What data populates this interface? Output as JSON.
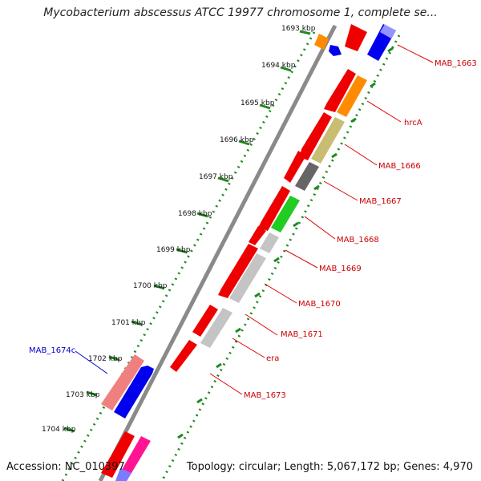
{
  "header": {
    "title": "Mycobacterium abscessus ATCC 19977 chromosome 1, complete se..."
  },
  "footer": {
    "accession": "Accession: NC_010397",
    "summary": "Topology: circular; Length: 5,067,172 bp; Genes: 4,970"
  },
  "ticks": [
    {
      "label": "1693 kbp",
      "kbp": 1693
    },
    {
      "label": "1694 kbp",
      "kbp": 1694
    },
    {
      "label": "1695 kbp",
      "kbp": 1695
    },
    {
      "label": "1696 kbp",
      "kbp": 1696
    },
    {
      "label": "1697 kbp",
      "kbp": 1697
    },
    {
      "label": "1698 kbp",
      "kbp": 1698
    },
    {
      "label": "1699 kbp",
      "kbp": 1699
    },
    {
      "label": "1700 kbp",
      "kbp": 1700
    },
    {
      "label": "1701 kbp",
      "kbp": 1701
    },
    {
      "label": "1702 kbp",
      "kbp": 1702
    },
    {
      "label": "1703 kbp",
      "kbp": 1703
    },
    {
      "label": "1704 kbp",
      "kbp": 1704
    }
  ],
  "gene_labels": [
    {
      "text": "MAB_1663",
      "color": "#cc0000"
    },
    {
      "text": "hrcA",
      "color": "#cc0000"
    },
    {
      "text": "MAB_1666",
      "color": "#cc0000"
    },
    {
      "text": "MAB_1667",
      "color": "#cc0000"
    },
    {
      "text": "MAB_1668",
      "color": "#cc0000"
    },
    {
      "text": "MAB_1669",
      "color": "#cc0000"
    },
    {
      "text": "MAB_1670",
      "color": "#cc0000"
    },
    {
      "text": "MAB_1671",
      "color": "#cc0000"
    },
    {
      "text": "era",
      "color": "#cc0000"
    },
    {
      "text": "MAB_1673",
      "color": "#cc0000"
    },
    {
      "text": "MAB_1674c",
      "color": "#0000cc"
    }
  ],
  "colors": {
    "backbone": "#8a8a8a",
    "tick_dots": "#1f8a1f",
    "gene_red": "#ee0000",
    "gene_blue": "#0000ee",
    "gene_orange": "#ff8c00",
    "gene_khaki": "#c8bd72",
    "gene_dark": "#666666",
    "gene_green": "#22cc22",
    "gene_lightgray": "#c4c4c4",
    "gene_pink": "#f08080",
    "gene_magenta": "#ff1493"
  }
}
